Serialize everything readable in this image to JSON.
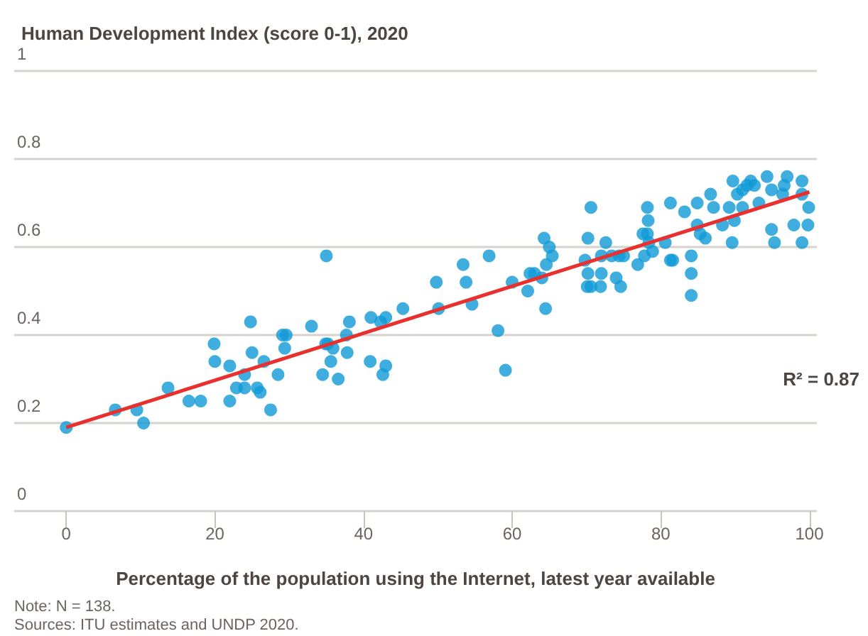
{
  "chart_data": {
    "type": "scatter",
    "title": "Human Development Index (score 0-1), 2020",
    "xlabel": "Percentage of the population using the Internet, latest year available",
    "annotations": [
      "R² = 0.87",
      "Note: N = 138.",
      "Sources: ITU estimates and UNDP 2020."
    ],
    "xlim": [
      -7,
      101
    ],
    "xticks": [
      0,
      20,
      40,
      60,
      80,
      100
    ],
    "ylim": [
      0,
      1
    ],
    "yticks": [
      0,
      0.2,
      0.4,
      0.6,
      0.8,
      1
    ],
    "grid": "y",
    "marker": "circle",
    "series": [
      {
        "color": "#0f9ad6",
        "x": [
          0,
          6.6,
          9.5,
          10.4,
          13.7,
          16.5,
          18.1,
          19.9,
          20,
          22,
          22,
          22.9,
          24,
          24,
          24.8,
          25,
          25.7,
          26.1,
          26.6,
          27.5,
          28.5,
          29.1,
          29.6,
          29.4,
          33,
          34.5,
          34.9,
          35,
          35.2,
          35.9,
          35.6,
          36.6,
          37.8,
          37.7,
          38.1,
          40.9,
          41,
          42.3,
          43,
          42.6,
          43,
          45.3,
          49.8,
          50.1,
          53.4,
          53.8,
          54.6,
          56.9,
          58.1,
          59.1,
          60,
          62.1,
          62.4,
          63,
          64,
          64.3,
          65,
          64.6,
          65.4,
          64.5,
          70.6,
          70.2,
          69.8,
          70.2,
          70.1,
          70.6,
          71.9,
          72,
          72,
          72.6,
          73.4,
          74.4,
          75,
          74,
          74.6,
          76.9,
          77.8,
          77.6,
          78.2,
          78.3,
          78.2,
          78.4,
          78.9,
          80.6,
          81.3,
          81.3,
          81.6,
          83.2,
          84.1,
          84.1,
          84.1,
          84.9,
          84.9,
          85.3,
          86,
          86.7,
          87.1,
          88.3,
          89.2,
          89.6,
          89.9,
          89.7,
          90.3,
          91,
          91.6,
          92.1,
          92.6,
          91,
          93.2,
          94.3,
          94.9,
          94.9,
          95.3,
          96.6,
          97,
          96.4,
          97.9,
          99,
          99,
          99.8,
          99.9,
          99
        ],
        "values": [
          0.19,
          0.23,
          0.23,
          0.2,
          0.28,
          0.25,
          0.25,
          0.38,
          0.34,
          0.33,
          0.25,
          0.28,
          0.28,
          0.31,
          0.43,
          0.36,
          0.28,
          0.27,
          0.34,
          0.23,
          0.31,
          0.4,
          0.4,
          0.37,
          0.42,
          0.31,
          0.38,
          0.58,
          0.38,
          0.37,
          0.34,
          0.3,
          0.36,
          0.4,
          0.43,
          0.34,
          0.44,
          0.43,
          0.44,
          0.31,
          0.33,
          0.46,
          0.52,
          0.46,
          0.56,
          0.52,
          0.47,
          0.58,
          0.41,
          0.32,
          0.52,
          0.5,
          0.54,
          0.54,
          0.53,
          0.62,
          0.6,
          0.56,
          0.58,
          0.46,
          0.69,
          0.62,
          0.57,
          0.54,
          0.51,
          0.51,
          0.51,
          0.54,
          0.58,
          0.61,
          0.58,
          0.58,
          0.58,
          0.53,
          0.51,
          0.56,
          0.58,
          0.63,
          0.63,
          0.66,
          0.69,
          0.61,
          0.59,
          0.61,
          0.7,
          0.57,
          0.57,
          0.68,
          0.58,
          0.54,
          0.49,
          0.7,
          0.65,
          0.63,
          0.62,
          0.72,
          0.69,
          0.65,
          0.69,
          0.61,
          0.66,
          0.75,
          0.72,
          0.73,
          0.74,
          0.75,
          0.74,
          0.69,
          0.7,
          0.76,
          0.73,
          0.64,
          0.61,
          0.74,
          0.76,
          0.72,
          0.65,
          0.75,
          0.72,
          0.65,
          0.69,
          0.61
        ]
      },
      {
        "type": "line",
        "color": "#e8312f",
        "marker": "none",
        "x": [
          0,
          100
        ],
        "values": [
          0.19,
          0.725
        ]
      }
    ]
  }
}
